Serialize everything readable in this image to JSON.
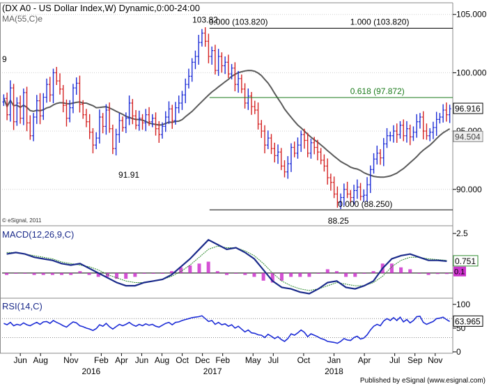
{
  "title": "(DX A0 - US Dollar Index,W) Dynamic,0:00-24:00",
  "ma_label": "MA(55,C)e",
  "left_fragment": "9",
  "watermark": "© eSignal, 2011",
  "footer": "Published by eSignal (www.esignal.com)",
  "colors": {
    "up_bar": "#1b2bd6",
    "down_bar": "#d42020",
    "ma_line": "#5a5a5a",
    "fib_line": "#1a7a1a",
    "macd_line": "#1a2a8a",
    "signal_line": "#2e8b2e",
    "histogram": "#cc33cc",
    "rsi_line": "#1b2bd6",
    "grid": "#cfcfcf",
    "frame": "#8a8a8a"
  },
  "chart_data": [
    {
      "type": "candlestick",
      "name": "price",
      "title": "(DX A0 - US Dollar Index,W) Dynamic,0:00-24:00",
      "ylim": [
        87.0,
        106.0
      ],
      "y_ticks": [
        "90.000",
        "95.000",
        "100.000",
        "105.000"
      ],
      "x_labels": [
        "Jun",
        "Aug",
        "Nov",
        "Feb",
        "Apr",
        "Jun",
        "Aug",
        "Oct",
        "Dec",
        "Feb",
        "May",
        "Jul",
        "Oct",
        "Jan",
        "Apr",
        "Jul",
        "Sep",
        "Nov"
      ],
      "x_label_months": [
        6.0,
        8.0,
        11.0,
        14.0,
        16.0,
        18.0,
        20.0,
        22.0,
        24.0,
        26.0,
        29.0,
        31.0,
        34.0,
        37.0,
        40.0,
        43.0,
        45.0,
        47.0
      ],
      "year_labels": [
        "2016",
        "2017",
        "2018"
      ],
      "year_months": [
        13.0,
        25.0,
        37.0
      ],
      "x_range_months": [
        4.2,
        48.6
      ],
      "closes": [
        97.8,
        96.4,
        98.7,
        95.8,
        97.4,
        96.1,
        98.3,
        95.7,
        94.6,
        96.2,
        97.6,
        96.3,
        97.9,
        99.0,
        98.1,
        100.0,
        99.3,
        98.6,
        97.2,
        96.1,
        97.0,
        98.7,
        99.1,
        97.3,
        96.4,
        95.8,
        94.9,
        93.8,
        94.4,
        96.2,
        95.4,
        96.8,
        95.2,
        93.5,
        94.7,
        95.9,
        95.3,
        96.1,
        97.4,
        96.3,
        95.5,
        96.1,
        95.7,
        96.4,
        95.8,
        96.1,
        95.2,
        94.7,
        95.4,
        96.2,
        96.9,
        95.9,
        97.0,
        97.4,
        98.1,
        99.0,
        99.7,
        100.9,
        101.4,
        102.6,
        103.4,
        102.7,
        101.4,
        101.9,
        100.2,
        101.4,
        100.6,
        100.9,
        99.9,
        100.4,
        99.0,
        99.5,
        98.6,
        97.4,
        98.0,
        97.1,
        96.8,
        95.6,
        95.0,
        93.8,
        94.4,
        93.5,
        92.9,
        93.2,
        92.0,
        91.5,
        92.2,
        93.6,
        93.1,
        93.8,
        94.7,
        94.2,
        93.1,
        94.0,
        93.6,
        93.2,
        92.5,
        92.0,
        91.0,
        90.6,
        89.6,
        88.9,
        89.3,
        90.0,
        89.6,
        89.3,
        89.9,
        90.2,
        89.4,
        89.5,
        90.4,
        91.7,
        92.6,
        93.1,
        92.7,
        93.9,
        94.6,
        94.6,
        95.0,
        94.7,
        95.5,
        94.6,
        95.2,
        94.5,
        94.9,
        95.8,
        96.2,
        95.0,
        94.6,
        94.9,
        95.3,
        96.0,
        96.2,
        96.8,
        96.4,
        96.916
      ],
      "last": "96.916",
      "ma55_last": "94.504",
      "fib_levels": [
        {
          "label": "0.000 (103.820)",
          "value": 103.82
        },
        {
          "label": "1.000 (103.820)",
          "value": 103.82
        },
        {
          "label": "0.618 (97.872)",
          "value": 97.872
        },
        {
          "label": "0.000 (88.250)",
          "value": 88.25
        }
      ],
      "annotations": [
        {
          "text": "103.82",
          "value": 103.82
        },
        {
          "text": "91.91",
          "value": 91.91
        },
        {
          "text": "88.25",
          "value": 88.25
        }
      ]
    },
    {
      "type": "line",
      "name": "MACD(12,26,9,C)",
      "title": "MACD(12,26,9,C)",
      "ylim": [
        -1.5,
        2.9
      ],
      "y_ticks": [
        "2.5"
      ],
      "last_macd": "0.751",
      "last_hist": "0.1",
      "series": [
        {
          "name": "MACD",
          "values": [
            1.2,
            1.3,
            1.2,
            1.0,
            0.9,
            0.8,
            0.6,
            0.5,
            0.6,
            0.3,
            0.0,
            -0.3,
            -0.6,
            -0.8,
            -0.8,
            -0.6,
            -0.5,
            -0.4,
            -0.1,
            0.4,
            0.9,
            1.5,
            2.1,
            1.8,
            1.5,
            1.6,
            1.3,
            0.9,
            0.2,
            -0.5,
            -0.9,
            -1.0,
            -1.2,
            -1.3,
            -1.0,
            -0.6,
            -0.5,
            -0.9,
            -1.0,
            -0.8,
            -0.5,
            0.3,
            0.9,
            1.1,
            1.2,
            1.0,
            0.8,
            0.8,
            0.75
          ]
        },
        {
          "name": "Signal",
          "values": [
            1.3,
            1.3,
            1.2,
            1.1,
            1.0,
            0.9,
            0.7,
            0.6,
            0.5,
            0.4,
            0.2,
            -0.1,
            -0.3,
            -0.5,
            -0.6,
            -0.6,
            -0.5,
            -0.4,
            -0.2,
            0.1,
            0.5,
            1.0,
            1.5,
            1.7,
            1.6,
            1.6,
            1.4,
            1.1,
            0.6,
            0.0,
            -0.5,
            -0.8,
            -1.0,
            -1.1,
            -1.0,
            -0.8,
            -0.6,
            -0.7,
            -0.8,
            -0.8,
            -0.6,
            -0.2,
            0.4,
            0.8,
            1.0,
            1.0,
            0.9,
            0.85,
            0.8
          ]
        }
      ]
    },
    {
      "type": "line",
      "name": "RSI(14,C)",
      "title": "RSI(14,C)",
      "ylim": [
        0,
        110
      ],
      "y_ticks": [
        "100",
        "50",
        "0"
      ],
      "last": "63.965",
      "values": [
        60,
        57,
        62,
        55,
        58,
        56,
        61,
        57,
        55,
        59,
        62,
        58,
        63,
        64,
        60,
        66,
        62,
        59,
        55,
        52,
        58,
        63,
        61,
        55,
        53,
        50,
        48,
        45,
        49,
        57,
        54,
        60,
        53,
        48,
        53,
        58,
        55,
        58,
        62,
        57,
        54,
        58,
        55,
        59,
        56,
        58,
        54,
        52,
        56,
        60,
        62,
        57,
        62,
        63,
        66,
        68,
        70,
        72,
        73,
        74,
        76,
        70,
        64,
        66,
        58,
        62,
        57,
        59,
        54,
        57,
        50,
        54,
        48,
        42,
        46,
        40,
        39,
        36,
        35,
        30,
        37,
        33,
        28,
        32,
        26,
        22,
        28,
        38,
        35,
        40,
        46,
        41,
        32,
        38,
        35,
        32,
        28,
        26,
        22,
        21,
        20,
        18,
        22,
        28,
        25,
        24,
        30,
        33,
        27,
        29,
        36,
        46,
        54,
        58,
        55,
        65,
        70,
        66,
        72,
        66,
        73,
        63,
        68,
        61,
        66,
        74,
        75,
        62,
        58,
        61,
        64,
        70,
        71,
        73,
        68,
        64
      ]
    }
  ]
}
